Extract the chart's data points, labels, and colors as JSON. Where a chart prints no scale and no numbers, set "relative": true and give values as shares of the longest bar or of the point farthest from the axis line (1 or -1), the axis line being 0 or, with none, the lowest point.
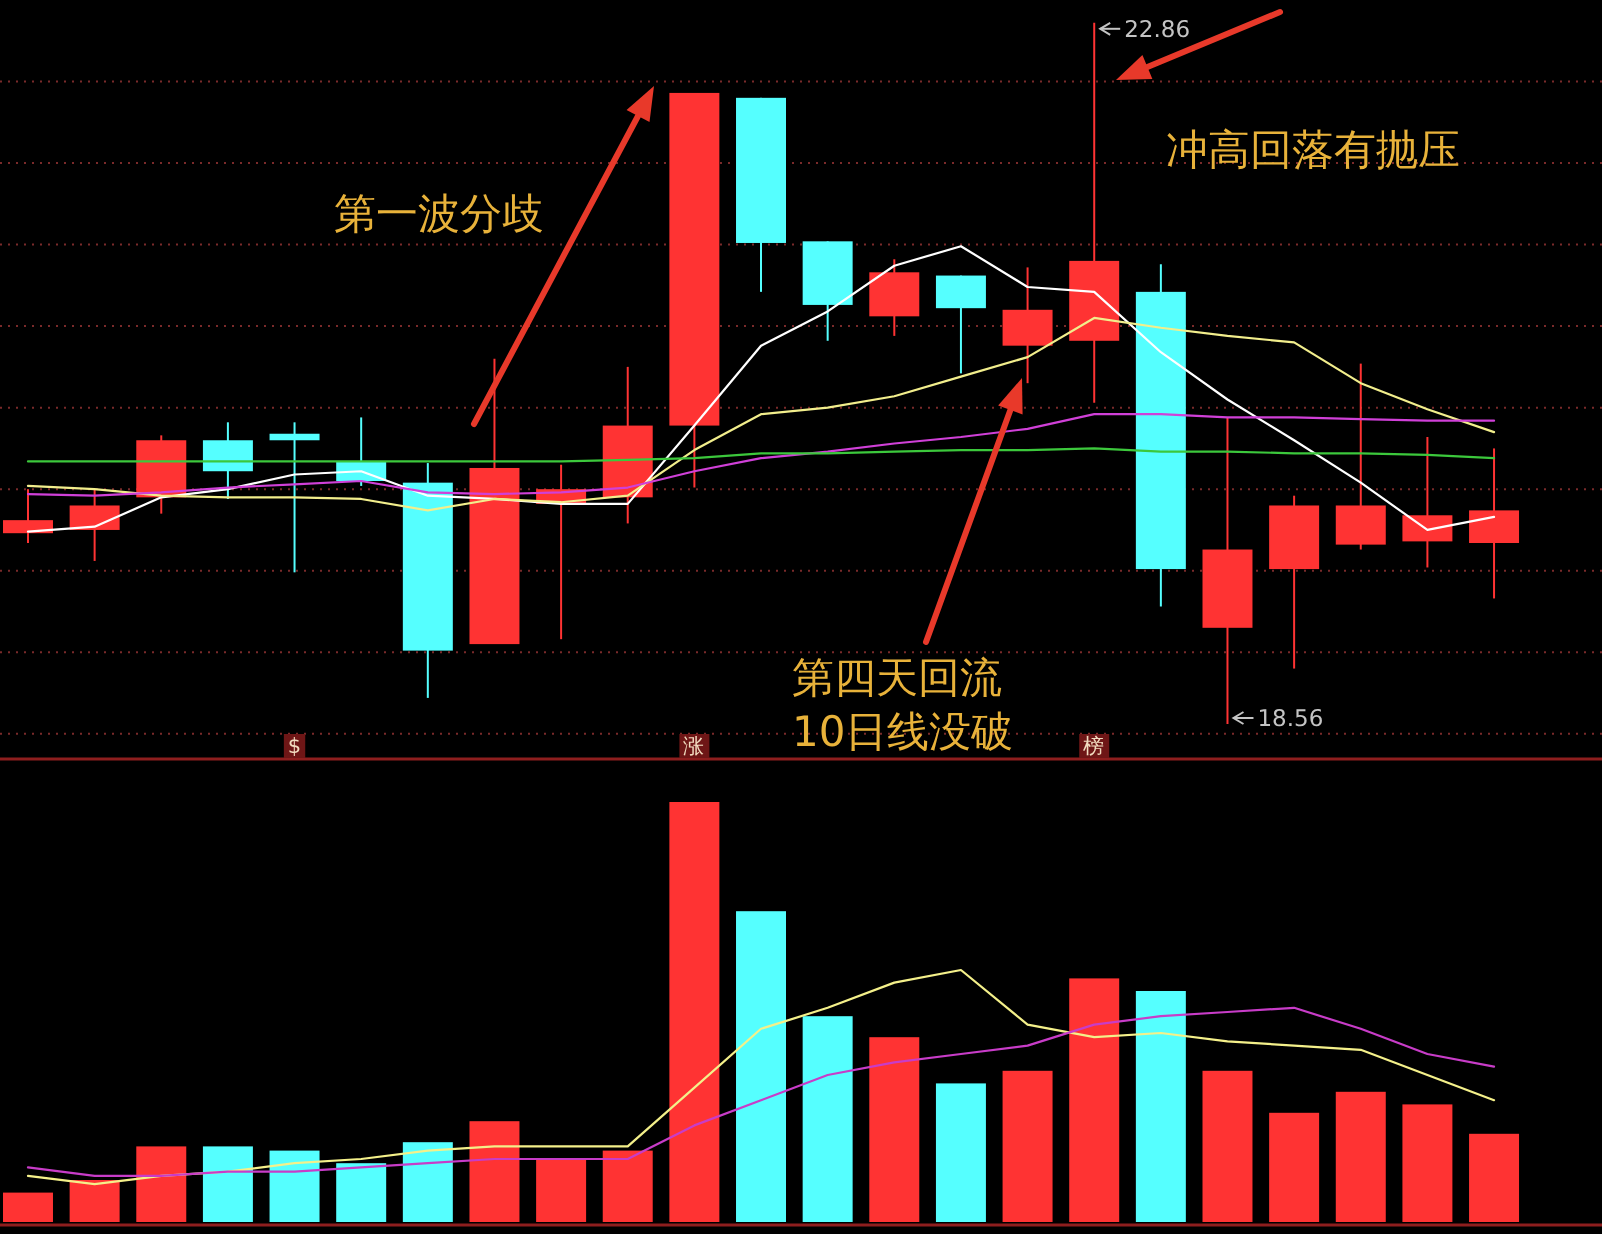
{
  "chart_data": [
    {
      "type": "candlestick",
      "categories": [
        null,
        null,
        null,
        null,
        "$",
        null,
        null,
        null,
        null,
        null,
        "涨",
        null,
        null,
        null,
        null,
        null,
        "榜",
        null,
        null,
        null,
        null,
        null,
        null
      ],
      "ohlc": [
        [
          19.73,
          20.0,
          19.67,
          19.81
        ],
        [
          19.75,
          20.0,
          19.56,
          19.9
        ],
        [
          19.95,
          20.33,
          19.85,
          20.3
        ],
        [
          20.3,
          20.41,
          19.94,
          20.11
        ],
        [
          20.34,
          20.41,
          19.49,
          20.3
        ],
        [
          20.17,
          20.44,
          20.02,
          20.05
        ],
        [
          20.04,
          20.16,
          18.72,
          19.01
        ],
        [
          19.05,
          20.8,
          19.05,
          20.13
        ],
        [
          19.91,
          20.15,
          19.08,
          20.0
        ],
        [
          19.95,
          20.75,
          19.79,
          20.39
        ],
        [
          20.39,
          22.43,
          20.01,
          22.43
        ],
        [
          22.4,
          22.4,
          21.21,
          21.51
        ],
        [
          21.52,
          21.52,
          20.91,
          21.13
        ],
        [
          21.06,
          21.41,
          20.94,
          21.33
        ],
        [
          21.31,
          21.31,
          20.71,
          21.11
        ],
        [
          20.88,
          21.36,
          20.65,
          21.1
        ],
        [
          20.91,
          22.86,
          20.53,
          21.4
        ],
        [
          21.21,
          21.38,
          19.28,
          19.51
        ],
        [
          19.15,
          20.44,
          18.56,
          19.63
        ],
        [
          19.51,
          19.96,
          18.9,
          19.9
        ],
        [
          19.66,
          20.77,
          19.63,
          19.9
        ],
        [
          19.68,
          20.32,
          19.52,
          19.84
        ],
        [
          19.67,
          20.25,
          19.33,
          19.87
        ]
      ],
      "colors": [
        "#ff3333",
        "#ff3333",
        "#ff3333",
        "#55ffff",
        "#55ffff",
        "#55ffff",
        "#55ffff",
        "#ff3333",
        "#ff3333",
        "#ff3333",
        "#ff3333",
        "#55ffff",
        "#55ffff",
        "#ff3333",
        "#55ffff",
        "#ff3333",
        "#ff3333",
        "#55ffff",
        "#ff3333",
        "#ff3333",
        "#ff3333",
        "#ff3333",
        "#ff3333"
      ],
      "series": [
        {
          "type": "line",
          "color": "#ffffff",
          "values": [
            19.74,
            19.77,
            19.95,
            20.0,
            20.09,
            20.11,
            19.96,
            19.94,
            19.91,
            19.91,
            20.39,
            20.88,
            21.09,
            21.37,
            21.49,
            21.24,
            21.21,
            20.84,
            20.55,
            20.3,
            20.04,
            19.75,
            19.83
          ]
        },
        {
          "type": "line",
          "color": "#f2ee8c",
          "values": [
            20.02,
            20.0,
            19.96,
            19.95,
            19.95,
            19.94,
            19.87,
            19.94,
            19.92,
            19.96,
            20.24,
            20.46,
            20.5,
            20.57,
            20.69,
            20.81,
            21.05,
            20.99,
            20.94,
            20.9,
            20.65,
            20.49,
            20.35
          ]
        },
        {
          "type": "line",
          "color": "#d040d8",
          "values": [
            19.97,
            19.96,
            19.98,
            20.01,
            20.03,
            20.05,
            19.98,
            19.97,
            19.98,
            20.01,
            20.11,
            20.19,
            20.23,
            20.28,
            20.32,
            20.37,
            20.46,
            20.46,
            20.44,
            20.44,
            20.43,
            20.42,
            20.42
          ]
        },
        {
          "type": "line",
          "color": "#3cc83c",
          "values": [
            20.17,
            20.17,
            20.17,
            20.17,
            20.17,
            20.17,
            20.17,
            20.17,
            20.17,
            20.18,
            20.19,
            20.22,
            20.22,
            20.23,
            20.24,
            20.24,
            20.25,
            20.23,
            20.23,
            20.22,
            20.22,
            20.21,
            20.19
          ]
        }
      ],
      "yticks": [
        {
          "value": 18.5,
          "label": null
        },
        {
          "value": 19.0,
          "label": null
        },
        {
          "value": 19.5,
          "label": null
        },
        {
          "value": 20.0,
          "label": null
        },
        {
          "value": 20.5,
          "label": null
        },
        {
          "value": 21.0,
          "label": null
        },
        {
          "value": 21.5,
          "label": null
        },
        {
          "value": 22.0,
          "label": null
        },
        {
          "value": 22.5,
          "label": null
        }
      ],
      "grid": "y",
      "tick_labels": "x",
      "annotations": [
        "22.86",
        "18.56",
        "第一波分歧",
        "冲高回落有抛压",
        "第四天回流\n10日线没破"
      ]
    },
    {
      "type": "bar",
      "categories": [
        null,
        null,
        null,
        null,
        null,
        null,
        null,
        null,
        null,
        null,
        null,
        null,
        null,
        null,
        null,
        null,
        null,
        null,
        null,
        null,
        null,
        null,
        null
      ],
      "relative": true,
      "series": [
        {
          "colors": [
            "#ff3333",
            "#ff3333",
            "#ff3333",
            "#55ffff",
            "#55ffff",
            "#55ffff",
            "#55ffff",
            "#ff3333",
            "#ff3333",
            "#ff3333",
            "#ff3333",
            "#55ffff",
            "#55ffff",
            "#ff3333",
            "#55ffff",
            "#ff3333",
            "#ff3333",
            "#55ffff",
            "#ff3333",
            "#ff3333",
            "#ff3333",
            "#ff3333",
            "#ff3333"
          ],
          "values": [
            0.07,
            0.1,
            0.18,
            0.18,
            0.17,
            0.14,
            0.19,
            0.24,
            0.15,
            0.17,
            1,
            0.74,
            0.49,
            0.44,
            0.33,
            0.36,
            0.58,
            0.55,
            0.36,
            0.26,
            0.31,
            0.28,
            0.21
          ]
        },
        {
          "type": "line",
          "color": "#f4f08a",
          "values": [
            0.11,
            0.09,
            0.11,
            0.12,
            0.14,
            0.15,
            0.17,
            0.18,
            0.18,
            0.18,
            0.32,
            0.46,
            0.51,
            0.57,
            0.6,
            0.47,
            0.44,
            0.45,
            0.43,
            0.42,
            0.41,
            0.35,
            0.29
          ]
        },
        {
          "type": "line",
          "color": "#c83cc8",
          "values": [
            0.13,
            0.11,
            0.11,
            0.12,
            0.12,
            0.13,
            0.14,
            0.15,
            0.15,
            0.15,
            0.23,
            0.29,
            0.35,
            0.38,
            0.4,
            0.42,
            0.47,
            0.49,
            0.5,
            0.51,
            0.46,
            0.4,
            0.37
          ]
        }
      ],
      "tick_labels": false
    }
  ]
}
